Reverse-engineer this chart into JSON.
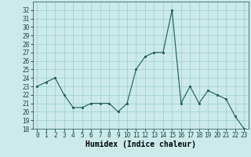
{
  "x": [
    0,
    1,
    2,
    3,
    4,
    5,
    6,
    7,
    8,
    9,
    10,
    11,
    12,
    13,
    14,
    15,
    16,
    17,
    18,
    19,
    20,
    21,
    22,
    23
  ],
  "y": [
    23,
    23.5,
    24,
    22,
    20.5,
    20.5,
    21,
    21,
    21,
    20,
    21,
    25,
    26.5,
    27,
    27,
    32,
    21,
    23,
    21,
    22.5,
    22,
    21.5,
    19.5,
    18
  ],
  "xlabel": "Humidex (Indice chaleur)",
  "ylim": [
    18,
    33
  ],
  "xlim": [
    -0.5,
    23.5
  ],
  "yticks": [
    18,
    19,
    20,
    21,
    22,
    23,
    24,
    25,
    26,
    27,
    28,
    29,
    30,
    31,
    32
  ],
  "xticks": [
    0,
    1,
    2,
    3,
    4,
    5,
    6,
    7,
    8,
    9,
    10,
    11,
    12,
    13,
    14,
    15,
    16,
    17,
    18,
    19,
    20,
    21,
    22,
    23
  ],
  "line_color": "#1a5c52",
  "marker_color": "#1a5c52",
  "bg_color": "#cceaea",
  "grid_color": "#99cccc",
  "tick_fontsize": 5.5,
  "label_fontsize": 7
}
